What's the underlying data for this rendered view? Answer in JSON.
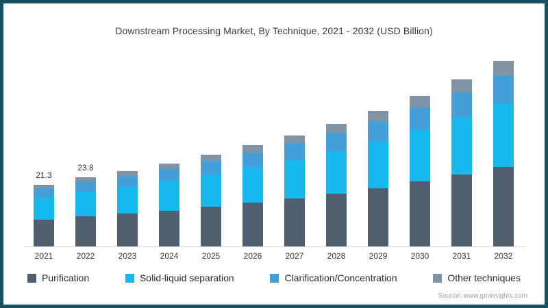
{
  "frame": {
    "border_color": "#155163"
  },
  "source": "Source: www.gminsights.com",
  "chart_data": {
    "type": "bar",
    "stacked": true,
    "title": "Downstream Processing Market, By Technique, 2021 - 2032 (USD Billion)",
    "xlabel": "",
    "ylabel": "",
    "ylim": [
      0,
      66
    ],
    "grid": false,
    "legend_position": "bottom",
    "categories": [
      "2021",
      "2022",
      "2023",
      "2024",
      "2025",
      "2026",
      "2027",
      "2028",
      "2029",
      "2030",
      "2031",
      "2032"
    ],
    "series": [
      {
        "name": "Purification",
        "color": "#51606f",
        "values": [
          9.2,
          10.3,
          11.3,
          12.4,
          13.7,
          15.1,
          16.6,
          18.3,
          20.2,
          22.4,
          24.8,
          27.5
        ]
      },
      {
        "name": "Solid-liquid separation",
        "color": "#17b8ee",
        "values": [
          7.7,
          8.5,
          9.3,
          10.2,
          11.2,
          12.3,
          13.3,
          14.6,
          16.1,
          17.8,
          19.7,
          21.8
        ]
      },
      {
        "name": "Clarification/Concentration",
        "color": "#449fd8",
        "values": [
          3.1,
          3.5,
          3.8,
          4.2,
          4.6,
          5.1,
          5.7,
          6.3,
          7.0,
          7.8,
          8.7,
          9.9
        ]
      },
      {
        "name": "Other techniques",
        "color": "#8094a5",
        "values": [
          1.3,
          1.5,
          1.7,
          1.9,
          2.2,
          2.5,
          2.7,
          3.2,
          3.6,
          4.0,
          4.5,
          4.9
        ]
      }
    ],
    "totals": [
      21.3,
      23.8,
      26.1,
      28.7,
      31.7,
      35.0,
      38.3,
      42.4,
      46.9,
      52.0,
      57.7,
      64.1
    ],
    "value_labels": [
      "21.3",
      "23.8",
      "",
      "",
      "",
      "",
      "",
      "",
      "",
      "",
      "",
      ""
    ]
  }
}
